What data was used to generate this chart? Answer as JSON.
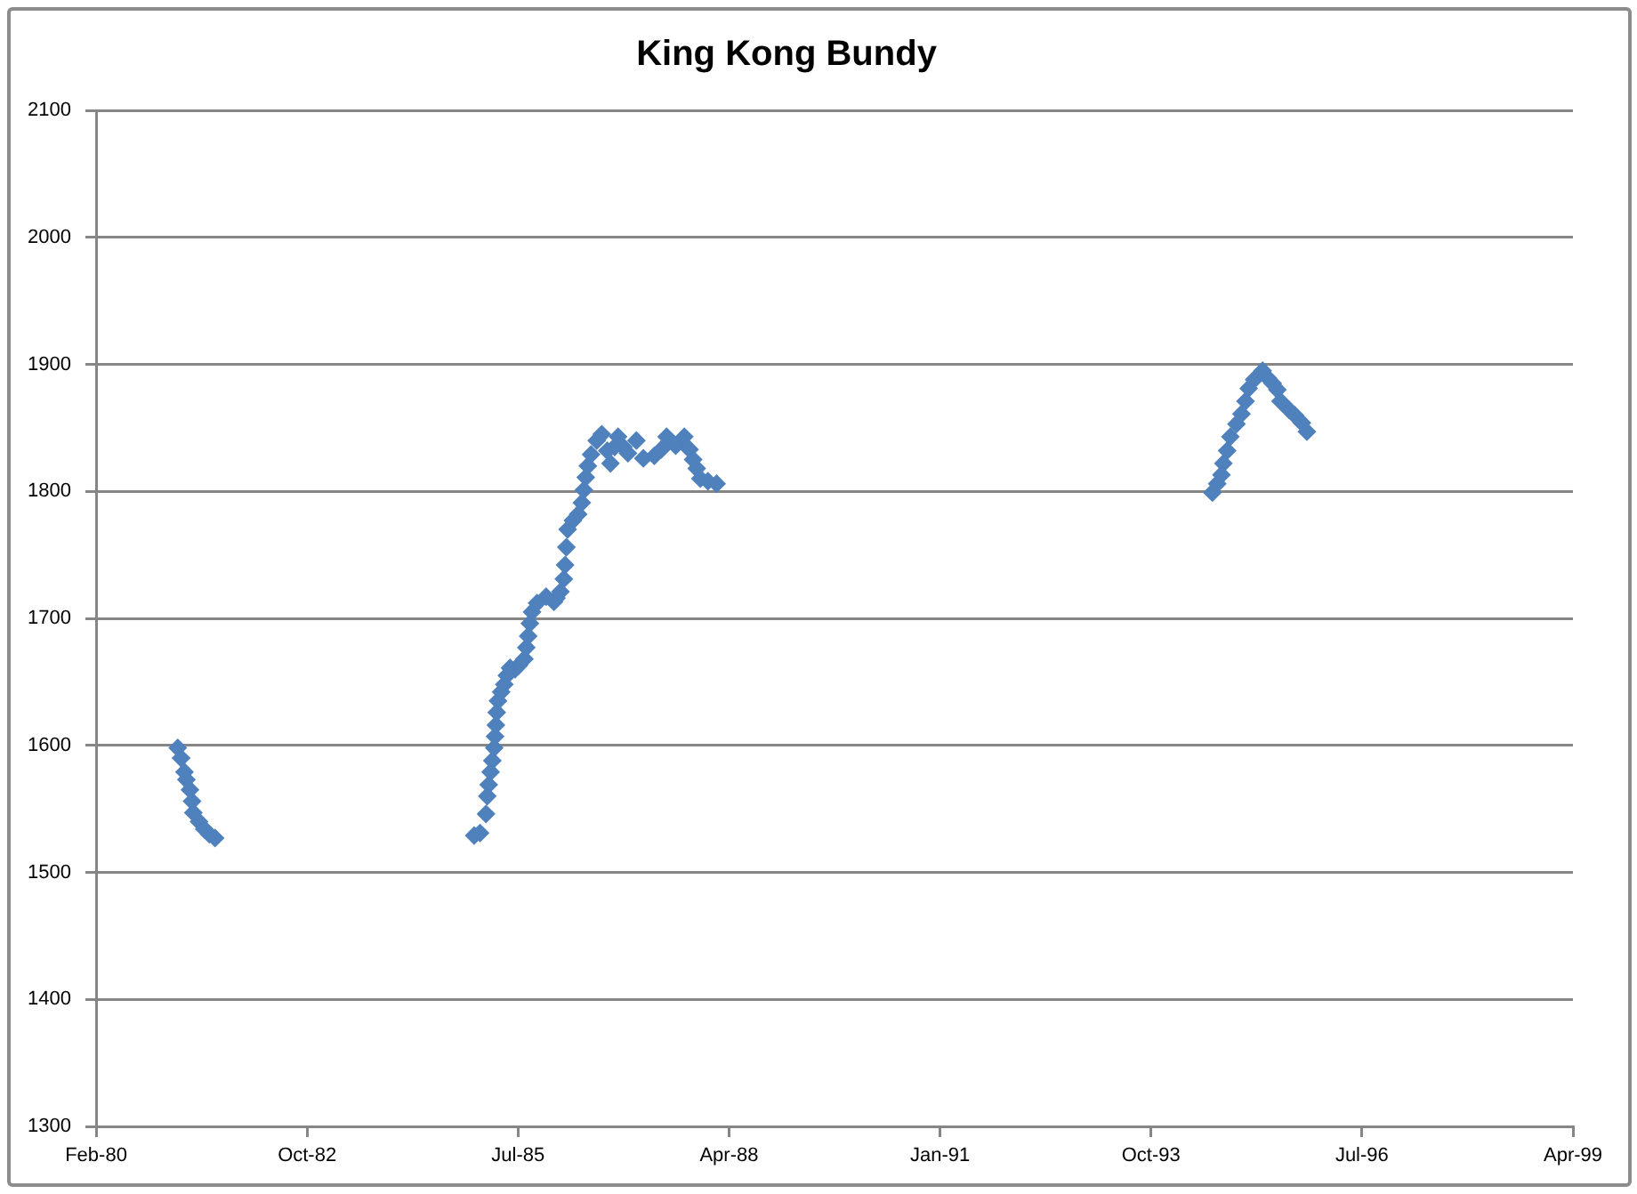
{
  "chart_data": {
    "type": "scatter",
    "title": "King Kong Bundy",
    "x": [
      "1981-02-22",
      "1981-03-10",
      "1981-03-26",
      "1981-04-04",
      "1981-04-21",
      "1981-05-01",
      "1981-05-07",
      "1981-06-03",
      "1981-06-28",
      "1981-07-22",
      "1981-08-18",
      "1984-12-28",
      "1985-01-25",
      "1985-02-22",
      "1985-02-28",
      "1985-03-07",
      "1985-03-16",
      "1985-03-24",
      "1985-04-02",
      "1985-04-06",
      "1985-04-10",
      "1985-04-14",
      "1985-04-20",
      "1985-05-05",
      "1985-05-20",
      "1985-06-01",
      "1985-06-16",
      "1985-07-10",
      "1985-07-28",
      "1985-08-23",
      "1985-09-01",
      "1985-09-10",
      "1985-09-18",
      "1985-09-28",
      "1985-10-22",
      "1985-12-04",
      "1986-01-10",
      "1986-01-22",
      "1986-02-10",
      "1986-02-26",
      "1986-03-04",
      "1986-03-10",
      "1986-03-16",
      "1986-04-10",
      "1986-05-05",
      "1986-05-22",
      "1986-06-01",
      "1986-06-10",
      "1986-06-20",
      "1986-07-05",
      "1986-08-01",
      "1986-08-25",
      "1986-09-20",
      "1986-10-05",
      "1986-10-25",
      "1986-11-10",
      "1986-12-05",
      "1986-12-27",
      "1987-02-05",
      "1987-03-10",
      "1987-05-01",
      "1987-06-03",
      "1987-06-28",
      "1987-08-10",
      "1987-09-20",
      "1987-10-15",
      "1987-11-01",
      "1987-11-18",
      "1987-12-05",
      "1988-01-10",
      "1988-02-20",
      "1994-07-28",
      "1994-08-20",
      "1994-09-09",
      "1994-09-18",
      "1994-10-06",
      "1994-10-21",
      "1994-11-19",
      "1994-12-13",
      "1995-01-01",
      "1995-01-16",
      "1995-02-11",
      "1995-03-23",
      "1995-04-18",
      "1995-05-10",
      "1995-06-01",
      "1995-06-16",
      "1995-07-28",
      "1995-08-22",
      "1995-09-25",
      "1995-10-19"
    ],
    "values": [
      1598,
      1590,
      1579,
      1573,
      1565,
      1556,
      1547,
      1540,
      1534,
      1530,
      1527,
      1529,
      1531,
      1546,
      1560,
      1569,
      1579,
      1588,
      1598,
      1607,
      1616,
      1626,
      1635,
      1642,
      1648,
      1655,
      1661,
      1660,
      1663,
      1668,
      1677,
      1686,
      1696,
      1705,
      1712,
      1717,
      1713,
      1716,
      1721,
      1731,
      1742,
      1756,
      1770,
      1777,
      1782,
      1791,
      1801,
      1811,
      1820,
      1829,
      1840,
      1845,
      1832,
      1822,
      1835,
      1843,
      1835,
      1830,
      1840,
      1826,
      1828,
      1833,
      1843,
      1836,
      1843,
      1833,
      1825,
      1818,
      1810,
      1808,
      1806,
      1799,
      1806,
      1813,
      1822,
      1832,
      1843,
      1853,
      1861,
      1871,
      1881,
      1888,
      1895,
      1889,
      1885,
      1880,
      1871,
      1864,
      1860,
      1854,
      1847
    ],
    "color": "#4f81bd",
    "marker": "diamond",
    "xlim": [
      "1980-02-01",
      "1999-04-02"
    ],
    "xticks": [
      {
        "value": "1980-02-01",
        "label": "Feb-80"
      },
      {
        "value": "1982-10-28",
        "label": "Oct-82"
      },
      {
        "value": "1985-07-24",
        "label": "Jul-85"
      },
      {
        "value": "1988-04-19",
        "label": "Apr-88"
      },
      {
        "value": "1991-01-14",
        "label": "Jan-91"
      },
      {
        "value": "1993-10-10",
        "label": "Oct-93"
      },
      {
        "value": "1996-07-06",
        "label": "Jul-96"
      },
      {
        "value": "1999-04-02",
        "label": "Apr-99"
      }
    ],
    "ylim": [
      1300,
      2100
    ],
    "yticks": [
      1300,
      1400,
      1500,
      1600,
      1700,
      1800,
      1900,
      2000,
      2100
    ],
    "grid": "y"
  }
}
